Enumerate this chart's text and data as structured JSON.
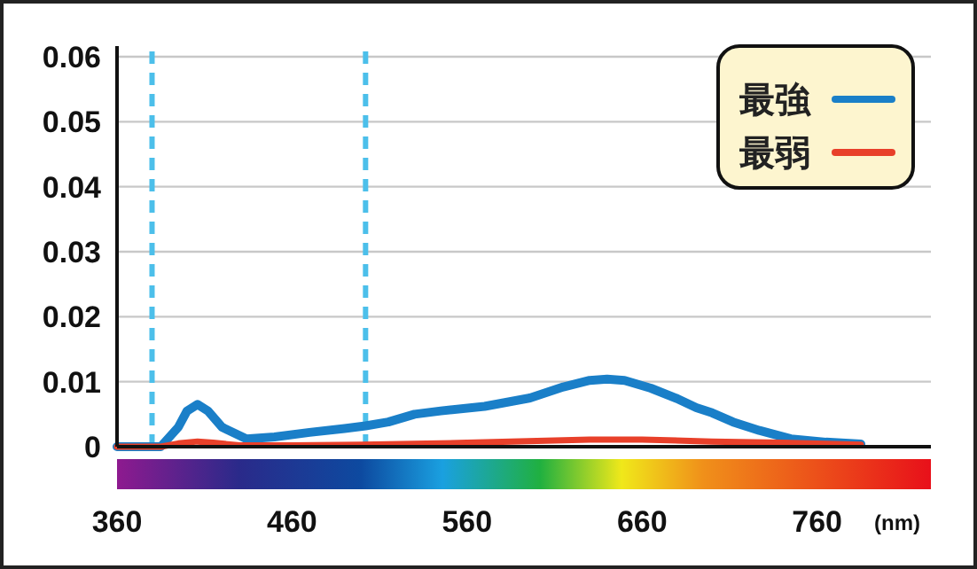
{
  "chart_data": {
    "type": "line",
    "xlabel": "(nm)",
    "xlim": [
      360,
      825
    ],
    "ylim": [
      0,
      0.06
    ],
    "xticks": [
      360,
      460,
      560,
      660,
      760
    ],
    "yticks": [
      0,
      0.01,
      0.02,
      0.03,
      0.04,
      0.05,
      0.06
    ],
    "grid": "y",
    "legend": "top right",
    "ref_lines": [
      {
        "axis": "x",
        "value": 380,
        "color": "#4cbfea",
        "line_style": "dashed"
      },
      {
        "axis": "x",
        "value": 502,
        "color": "#4cbfea",
        "line_style": "dashed"
      }
    ],
    "series": [
      {
        "name": "最強",
        "color": "#1a7fc8",
        "x": [
          360,
          385,
          395,
          400,
          406,
          412,
          420,
          434,
          450,
          470,
          490,
          502,
          515,
          530,
          545,
          570,
          596,
          615,
          630,
          640,
          650,
          665,
          680,
          691,
          700,
          712,
          727,
          745,
          765,
          785
        ],
        "values": [
          0,
          0,
          0.003,
          0.0055,
          0.0065,
          0.0055,
          0.003,
          0.0012,
          0.0015,
          0.0022,
          0.0028,
          0.0032,
          0.0038,
          0.005,
          0.0055,
          0.0062,
          0.0075,
          0.0092,
          0.0102,
          0.0104,
          0.0102,
          0.009,
          0.0074,
          0.006,
          0.0052,
          0.0038,
          0.0025,
          0.0012,
          0.0007,
          0.0004
        ]
      },
      {
        "name": "最弱",
        "color": "#e8402a",
        "x": [
          360,
          385,
          395,
          406,
          415,
          430,
          460,
          500,
          560,
          600,
          630,
          660,
          700,
          740,
          785
        ],
        "values": [
          0,
          0,
          0.0005,
          0.0008,
          0.0006,
          0.0002,
          0.0002,
          0.0003,
          0.0006,
          0.0009,
          0.0011,
          0.0011,
          0.0008,
          0.0006,
          0.0003
        ]
      }
    ]
  }
}
